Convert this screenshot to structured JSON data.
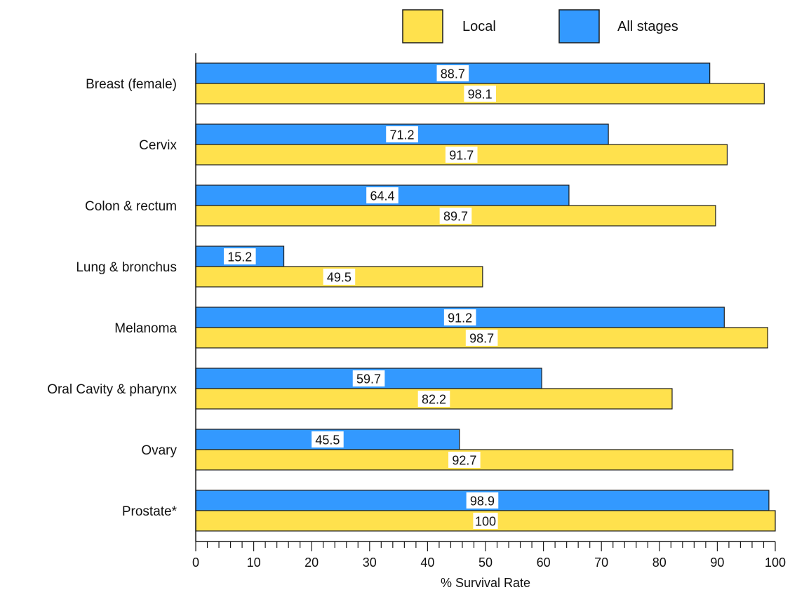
{
  "chart_data": {
    "type": "bar",
    "orientation": "horizontal",
    "categories": [
      "Breast (female)",
      "Cervix",
      "Colon & rectum",
      "Lung & bronchus",
      "Melanoma",
      "Oral Cavity & pharynx",
      "Ovary",
      "Prostate*"
    ],
    "series": [
      {
        "name": "All stages",
        "color": "#3399ff",
        "values": [
          88.7,
          71.2,
          64.4,
          15.2,
          91.2,
          59.7,
          45.5,
          98.9
        ],
        "labels": [
          "88.7",
          "71.2",
          "64.4",
          "15.2",
          "91.2",
          "59.7",
          "45.5",
          "98.9"
        ]
      },
      {
        "name": "Local",
        "color": "#ffe14d",
        "values": [
          98.1,
          91.7,
          89.7,
          49.5,
          98.7,
          82.2,
          92.7,
          100
        ],
        "labels": [
          "98.1",
          "91.7",
          "89.7",
          "49.5",
          "98.7",
          "82.2",
          "92.7",
          "100"
        ]
      }
    ],
    "legend": {
      "order": [
        "Local",
        "All stages"
      ],
      "placement": "top-right"
    },
    "xlabel": "% Survival Rate",
    "xlim": [
      0,
      100
    ],
    "xticks": [
      "0",
      "10",
      "20",
      "30",
      "40",
      "50",
      "60",
      "70",
      "80",
      "90",
      "100"
    ],
    "grid": false
  }
}
